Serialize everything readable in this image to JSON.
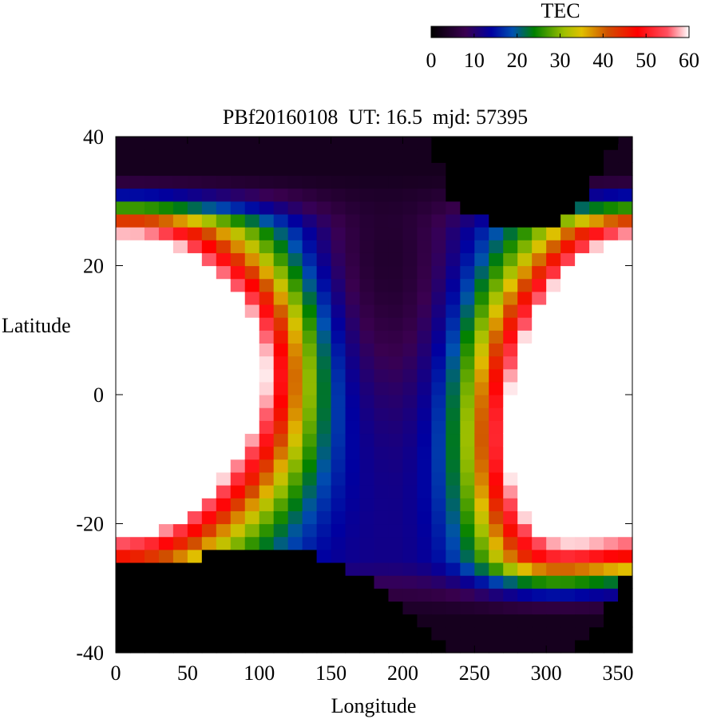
{
  "chart_data": {
    "type": "heatmap",
    "title": "PBf20160108  UT: 16.5  mjd: 57395",
    "xlabel": "Longitude",
    "ylabel": "Latitude",
    "xlim": [
      0,
      360
    ],
    "ylim": [
      -40,
      40
    ],
    "x_ticks": [
      "0",
      "50",
      "100",
      "150",
      "200",
      "250",
      "300",
      "350"
    ],
    "y_ticks": [
      "40",
      "20",
      "0",
      "-20",
      "-40"
    ],
    "colorbar": {
      "label": "TEC",
      "range": [
        0,
        60
      ],
      "ticks": [
        "0",
        "10",
        "20",
        "30",
        "40",
        "50",
        "60"
      ],
      "stops": [
        {
          "value": 0,
          "color": "#000000"
        },
        {
          "value": 8,
          "color": "#3a0050"
        },
        {
          "value": 14,
          "color": "#0000a0"
        },
        {
          "value": 19,
          "color": "#0050b0"
        },
        {
          "value": 24,
          "color": "#008000"
        },
        {
          "value": 31,
          "color": "#a0c000"
        },
        {
          "value": 35,
          "color": "#e0c000"
        },
        {
          "value": 41,
          "color": "#d05000"
        },
        {
          "value": 48,
          "color": "#ff0000"
        },
        {
          "value": 55,
          "color": "#ff5060"
        },
        {
          "value": 60,
          "color": "#ffffff"
        }
      ]
    },
    "grid": {
      "dlon": 10,
      "dlat": 2
    },
    "tec_field": {
      "background": 0,
      "coverage_lat_bounds": [
        {
          "lon": 0,
          "south": -26,
          "north": 40
        },
        {
          "lon": 40,
          "south": -26,
          "north": 40
        },
        {
          "lon": 50,
          "south": -25,
          "north": 40
        },
        {
          "lon": 60,
          "south": -25,
          "north": 40
        },
        {
          "lon": 80,
          "south": -23,
          "north": 40
        },
        {
          "lon": 110,
          "south": -23,
          "north": 40
        },
        {
          "lon": 150,
          "south": -26,
          "north": 40
        },
        {
          "lon": 180,
          "south": -29,
          "north": 40
        },
        {
          "lon": 200,
          "south": -34,
          "north": 40
        },
        {
          "lon": 220,
          "south": -37,
          "north": 40
        },
        {
          "lon": 235,
          "south": -40,
          "north": 29
        },
        {
          "lon": 255,
          "south": -40,
          "north": 27
        },
        {
          "lon": 280,
          "south": -40,
          "north": 25
        },
        {
          "lon": 300,
          "south": -40,
          "north": 25
        },
        {
          "lon": 315,
          "south": -40,
          "north": 28
        },
        {
          "lon": 330,
          "south": -38,
          "north": 32
        },
        {
          "lon": 345,
          "south": -31,
          "north": 37
        },
        {
          "lon": 355,
          "south": -27,
          "north": 40
        },
        {
          "lon": 360,
          "south": -27,
          "north": 40
        }
      ],
      "base_level": 12,
      "polar_fade": {
        "lat": 26,
        "width": 8,
        "low": 3
      },
      "anomaly_peaks": [
        {
          "lon": 20,
          "lat": 0,
          "amp": 56,
          "sig_lon": 55,
          "sig_lat": 16
        },
        {
          "lon": 20,
          "lat": 12,
          "amp": 35,
          "sig_lon": 55,
          "sig_lat": 11
        },
        {
          "lon": 15,
          "lat": -15,
          "amp": 18,
          "sig_lon": 50,
          "sig_lat": 8
        },
        {
          "lon": 100,
          "lat": 2,
          "amp": 22,
          "sig_lon": 30,
          "sig_lat": 12
        },
        {
          "lon": 350,
          "lat": 2,
          "amp": 54,
          "sig_lon": 45,
          "sig_lat": 14
        },
        {
          "lon": 300,
          "lat": -15,
          "amp": 30,
          "sig_lon": 30,
          "sig_lat": 14
        },
        {
          "lon": 265,
          "lat": -4,
          "amp": 12,
          "sig_lon": 25,
          "sig_lat": 16
        }
      ],
      "depletion": {
        "lon": 185,
        "lat": 20,
        "amp": -8,
        "sig_lon": 45,
        "sig_lat": 15
      }
    }
  }
}
